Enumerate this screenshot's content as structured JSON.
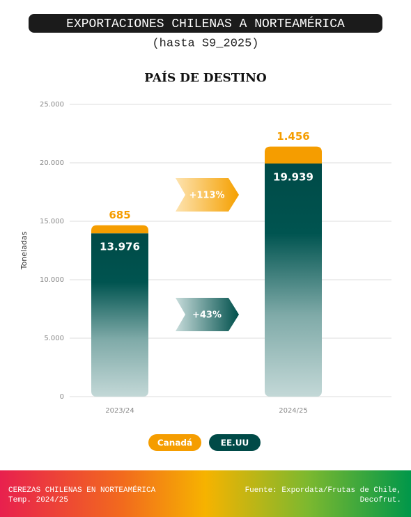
{
  "chart_data": {
    "type": "bar",
    "stacked": true,
    "header_title": "EXPORTACIONES CHILENAS A NORTEAMÉRICA",
    "subtitle": "(hasta S9_2025)",
    "title": "PAÍS DE DESTINO",
    "y_label": "Toneladas",
    "categories": [
      "2023/24",
      "2024/25"
    ],
    "series": [
      {
        "name": "Canadá",
        "color": "#f59d00",
        "values": [
          685,
          1456
        ],
        "value_labels": [
          "685",
          "1.456"
        ]
      },
      {
        "name": "EE.UU",
        "color": "#004a47",
        "values": [
          13976,
          19939
        ],
        "value_labels": [
          "13.976",
          "19.939"
        ]
      }
    ],
    "annotations": [
      "+113%",
      "+43%"
    ],
    "ylim": [
      0,
      25000
    ],
    "yticks": [
      0,
      {
        "value": 5000,
        "label": "5.000"
      },
      {
        "value": 10000,
        "label": "10.000"
      },
      {
        "value": 15000,
        "label": "15.000"
      },
      {
        "value": 20000,
        "label": "20.000"
      },
      {
        "value": 25000,
        "label": "25.000"
      }
    ],
    "grid": true,
    "legend": "bottom"
  },
  "footer": {
    "left": [
      "CEREZAS CHILENAS EN NORTEAMÉRICA",
      "Temp. 2024/25"
    ],
    "right": [
      "Fuente: Expordata/Frutas de Chile,",
      "Decofrut."
    ]
  }
}
